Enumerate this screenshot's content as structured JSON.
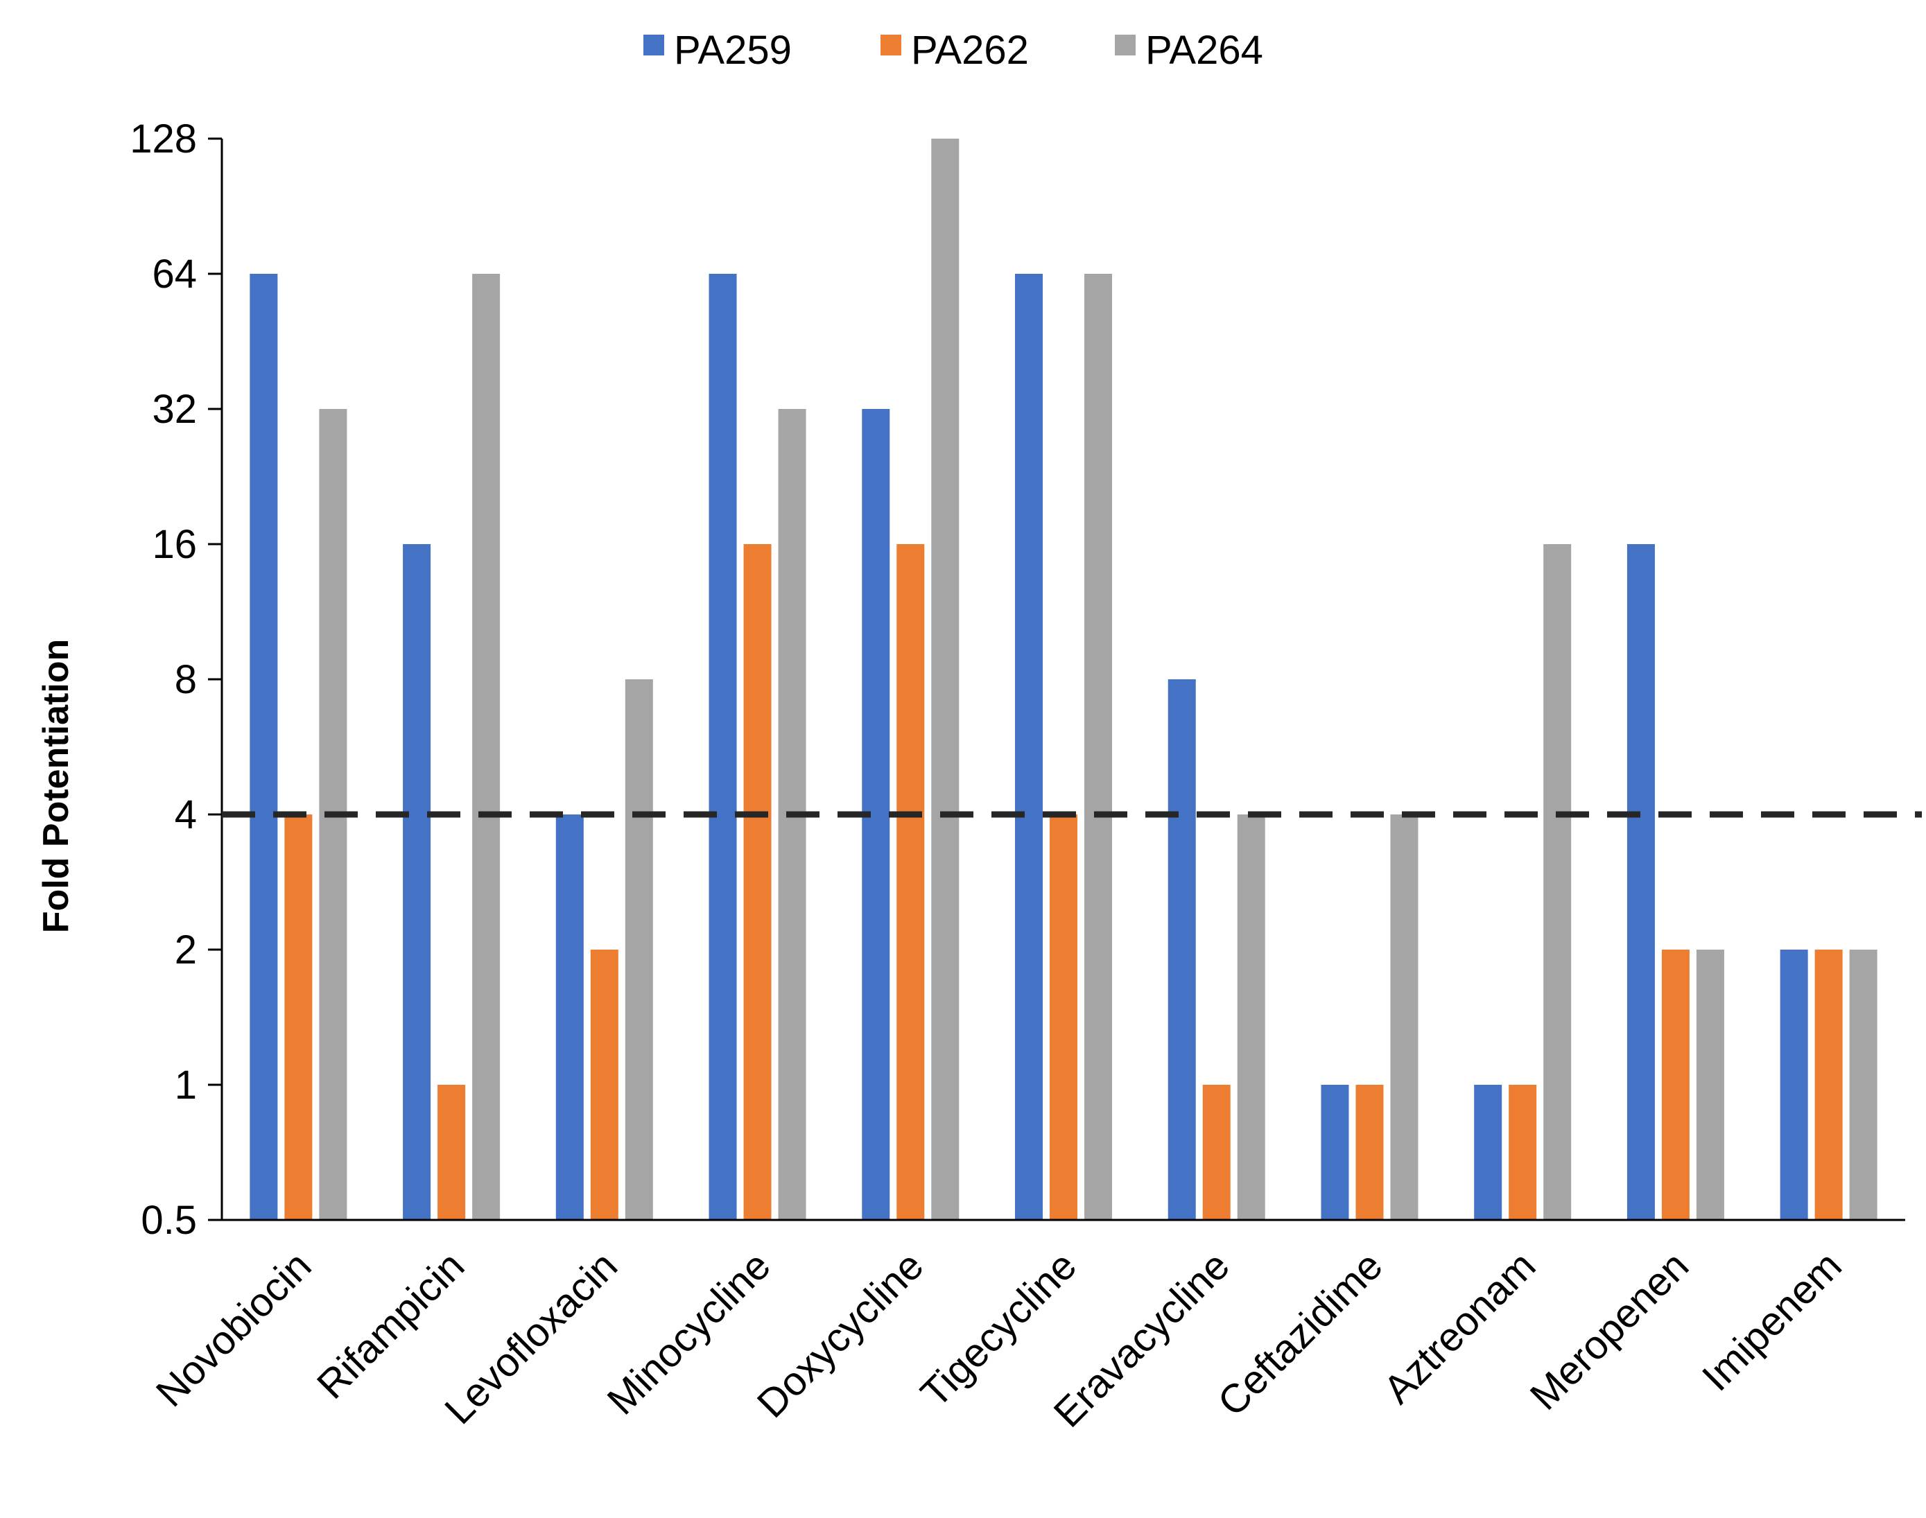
{
  "chart_data": {
    "type": "bar",
    "title": "",
    "xlabel": "",
    "ylabel": "Fold Potentiation",
    "y_scale": "log2",
    "ylim": [
      0.5,
      128
    ],
    "y_ticks": [
      "0.5",
      "1",
      "2",
      "4",
      "8",
      "16",
      "32",
      "64",
      "128"
    ],
    "y_tick_values": [
      0.5,
      1,
      2,
      4,
      8,
      16,
      32,
      64,
      128
    ],
    "grid": false,
    "legend_position": "top-center",
    "reference_line": {
      "y": 4,
      "style": "dashed"
    },
    "categories": [
      "Novobiocin",
      "Rifampicin",
      "Levofloxacin",
      "Minocycline",
      "Doxycycline",
      "Tigecycline",
      "Eravacycline",
      "Ceftazidime",
      "Aztreonam",
      "Meropenen",
      "Imipenem"
    ],
    "series": [
      {
        "name": "PA259",
        "color": "#4472C4",
        "values": [
          64,
          16,
          4,
          64,
          32,
          64,
          8,
          1,
          1,
          16,
          2
        ]
      },
      {
        "name": "PA262",
        "color": "#ED7D31",
        "values": [
          4,
          1,
          2,
          16,
          16,
          4,
          1,
          1,
          1,
          2,
          2
        ]
      },
      {
        "name": "PA264",
        "color": "#A5A5A5",
        "values": [
          32,
          64,
          8,
          32,
          128,
          64,
          4,
          4,
          16,
          2,
          2
        ]
      }
    ]
  }
}
